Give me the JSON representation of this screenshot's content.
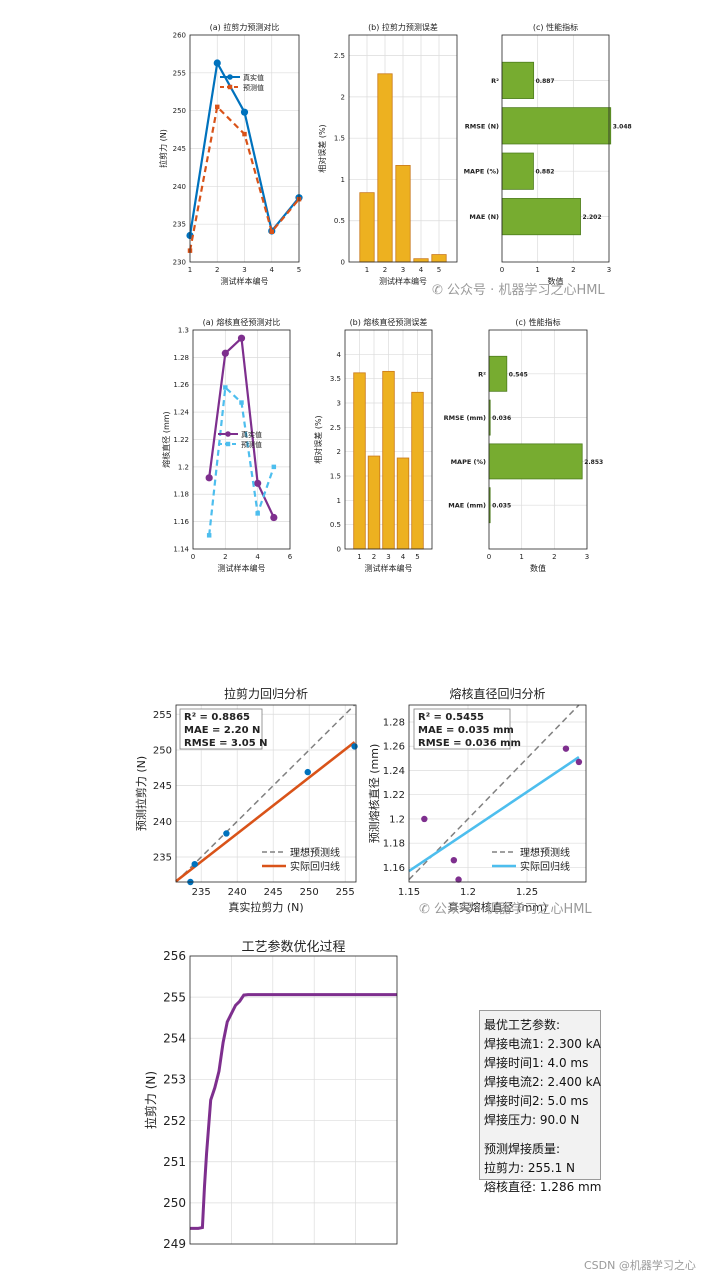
{
  "watermark": {
    "text_1": "公众号 · 机器学习之心HML",
    "text_2": "公众号 · 机器学习之心HML",
    "csdn": "CSDN @机器学习之心"
  },
  "optimum_box": {
    "heading_1": "最优工艺参数:",
    "lines_1": [
      "焊接电流1: 2.300 kA",
      "焊接时间1: 4.0 ms",
      "焊接电流2: 2.400 kA",
      "焊接时间2: 5.0 ms",
      "焊接压力: 90.0 N"
    ],
    "heading_2": "预测焊接质量:",
    "lines_2": [
      "拉剪力: 255.1 N",
      "熔核直径: 1.286 mm"
    ]
  },
  "chart_data": [
    {
      "id": "shear_compare",
      "type": "line",
      "title": "(a) 拉剪力预测对比",
      "xlabel": "测试样本编号",
      "ylabel": "拉剪力 (N)",
      "x": [
        1,
        2,
        3,
        4,
        5
      ],
      "xlim": [
        1,
        5
      ],
      "ylim": [
        230,
        260
      ],
      "xticks": [
        1,
        2,
        3,
        4,
        5
      ],
      "yticks": [
        230,
        235,
        240,
        245,
        250,
        255,
        260
      ],
      "grid": true,
      "legend_position": "top-right",
      "series": [
        {
          "name": "真实值",
          "color": "#0072BD",
          "style": "solid",
          "marker": "circle",
          "values": [
            233.5,
            256.3,
            249.8,
            234.1,
            238.5
          ]
        },
        {
          "name": "预测值",
          "color": "#D95319",
          "style": "dashed",
          "marker": "square",
          "values": [
            231.5,
            250.5,
            246.9,
            234.0,
            238.3
          ]
        }
      ]
    },
    {
      "id": "shear_error",
      "type": "bar",
      "title": "(b) 拉剪力预测误差",
      "xlabel": "测试样本编号",
      "ylabel": "相对误差 (%)",
      "categories": [
        "1",
        "2",
        "3",
        "4",
        "5"
      ],
      "values": [
        0.84,
        2.28,
        1.17,
        0.04,
        0.09
      ],
      "ylim": [
        0,
        2.75
      ],
      "yticks": [
        0,
        0.5,
        1,
        1.5,
        2,
        2.5
      ],
      "grid": true,
      "color": "#EDB120"
    },
    {
      "id": "shear_metrics",
      "type": "bar",
      "orientation": "horizontal",
      "title": "(c) 性能指标",
      "xlabel": "数值",
      "categories": [
        "R²",
        "RMSE (N)",
        "MAPE (%)",
        "MAE (N)"
      ],
      "values": [
        0.887,
        3.048,
        0.882,
        2.202
      ],
      "data_labels": [
        "0.887",
        "3.048",
        "0.882",
        "2.202"
      ],
      "xlim": [
        0,
        3
      ],
      "xticks": [
        0,
        1,
        2,
        3
      ],
      "grid": true,
      "color": "#77AC30"
    },
    {
      "id": "nugget_compare",
      "type": "line",
      "title": "(a) 熔核直径预测对比",
      "xlabel": "测试样本编号",
      "ylabel": "熔核直径 (mm)",
      "x": [
        1,
        2,
        3,
        4,
        5
      ],
      "xlim": [
        0,
        6
      ],
      "ylim": [
        1.14,
        1.3
      ],
      "xticks": [
        0,
        2,
        4,
        6
      ],
      "yticks": [
        1.14,
        1.16,
        1.18,
        1.2,
        1.22,
        1.24,
        1.26,
        1.28,
        1.3
      ],
      "grid": true,
      "legend_position": "center",
      "series": [
        {
          "name": "真实值",
          "color": "#7E2F8E",
          "style": "solid",
          "marker": "circle",
          "values": [
            1.192,
            1.283,
            1.294,
            1.188,
            1.163
          ]
        },
        {
          "name": "预测值",
          "color": "#4DBEEE",
          "style": "dashed",
          "marker": "square",
          "values": [
            1.15,
            1.258,
            1.247,
            1.166,
            1.2
          ]
        }
      ]
    },
    {
      "id": "nugget_error",
      "type": "bar",
      "title": "(b) 熔核直径预测误差",
      "xlabel": "测试样本编号",
      "ylabel": "相对误差 (%)",
      "categories": [
        "1",
        "2",
        "3",
        "4",
        "5"
      ],
      "values": [
        3.62,
        1.91,
        3.65,
        1.87,
        3.22
      ],
      "ylim": [
        0,
        4.5
      ],
      "yticks": [
        0,
        0.5,
        1,
        1.5,
        2,
        2.5,
        3,
        3.5,
        4
      ],
      "grid": true,
      "color": "#EDB120"
    },
    {
      "id": "nugget_metrics",
      "type": "bar",
      "orientation": "horizontal",
      "title": "(c) 性能指标",
      "xlabel": "数值",
      "categories": [
        "R²",
        "RMSE (mm)",
        "MAPE (%)",
        "MAE (mm)"
      ],
      "values": [
        0.545,
        0.036,
        2.853,
        0.035
      ],
      "data_labels": [
        "0.545",
        "0.036",
        "2.853",
        "0.035"
      ],
      "xlim": [
        0,
        3
      ],
      "xticks": [
        0,
        1,
        2,
        3
      ],
      "grid": true,
      "color": "#77AC30"
    },
    {
      "id": "shear_regression",
      "type": "scatter",
      "title": "拉剪力回归分析",
      "xlabel": "真实拉剪力 (N)",
      "ylabel": "预测拉剪力 (N)",
      "xlim": [
        231.5,
        256.5
      ],
      "ylim": [
        231.5,
        256.3
      ],
      "xticks": [
        235,
        240,
        245,
        250,
        255
      ],
      "yticks": [
        235,
        240,
        245,
        250,
        255
      ],
      "grid": true,
      "legend_position": "bottom-right",
      "points": {
        "x": [
          233.5,
          256.3,
          249.8,
          234.1,
          238.5
        ],
        "y": [
          231.5,
          250.5,
          246.9,
          234.0,
          238.3
        ],
        "color": "#0072BD"
      },
      "ideal_line": {
        "name": "理想预测线",
        "color": "#808080",
        "style": "dashed"
      },
      "fit_line": {
        "name": "实际回归线",
        "color": "#D95319",
        "x": [
          231.5,
          256.3
        ],
        "y": [
          231.6,
          251.1
        ]
      },
      "stats": [
        "R² = 0.8865",
        "MAE = 2.20 N",
        "RMSE = 3.05 N"
      ]
    },
    {
      "id": "nugget_regression",
      "type": "scatter",
      "title": "熔核直径回归分析",
      "xlabel": "真实熔核直径 (mm)",
      "ylabel": "预测熔核直径 (mm)",
      "xlim": [
        1.15,
        1.3
      ],
      "ylim": [
        1.148,
        1.294
      ],
      "xticks": [
        1.15,
        1.2,
        1.25
      ],
      "yticks": [
        1.16,
        1.18,
        1.2,
        1.22,
        1.24,
        1.26,
        1.28
      ],
      "grid": true,
      "legend_position": "bottom-right",
      "points": {
        "x": [
          1.192,
          1.283,
          1.294,
          1.188,
          1.163
        ],
        "y": [
          1.15,
          1.258,
          1.247,
          1.166,
          1.2
        ],
        "color": "#7E2F8E"
      },
      "ideal_line": {
        "name": "理想预测线",
        "color": "#808080",
        "style": "dashed"
      },
      "fit_line": {
        "name": "实际回归线",
        "color": "#4DBEEE",
        "x": [
          1.15,
          1.294
        ],
        "y": [
          1.157,
          1.251
        ]
      },
      "stats": [
        "R² = 0.5455",
        "MAE = 0.035 mm",
        "RMSE = 0.036 mm"
      ]
    },
    {
      "id": "optimization",
      "type": "line",
      "title": "工艺参数优化过程",
      "ylabel": "拉剪力 (N)",
      "ylim": [
        249,
        256
      ],
      "yticks": [
        249,
        250,
        251,
        252,
        253,
        254,
        255,
        256
      ],
      "xlim": [
        0,
        50
      ],
      "grid": true,
      "series": [
        {
          "name": "",
          "color": "#7E2F8E",
          "x": [
            0,
            2,
            3,
            3.5,
            4,
            5,
            6,
            7,
            8,
            9,
            10,
            11,
            12,
            13,
            14,
            15,
            50
          ],
          "values": [
            249.38,
            249.38,
            249.4,
            250.4,
            251.2,
            252.5,
            252.8,
            253.2,
            253.9,
            254.4,
            254.6,
            254.8,
            254.9,
            255.05,
            255.06,
            255.06,
            255.06
          ]
        }
      ]
    }
  ]
}
